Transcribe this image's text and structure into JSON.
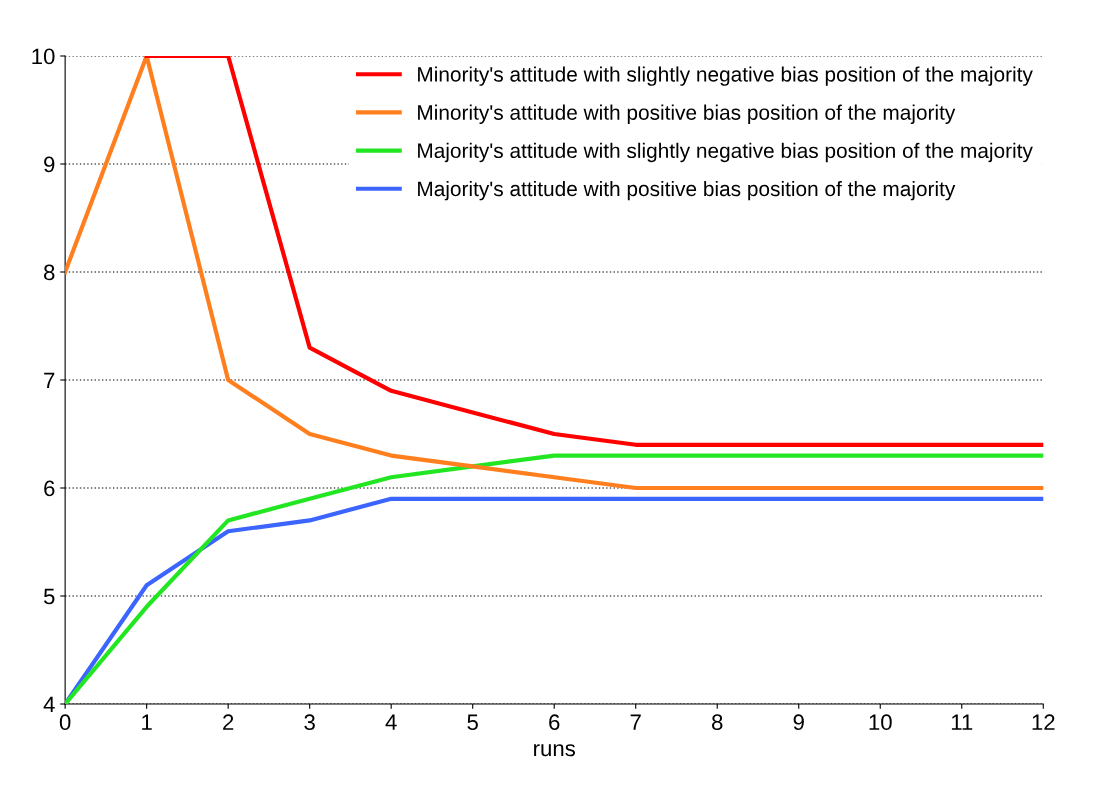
{
  "chart_data": {
    "type": "line",
    "xlabel": "runs",
    "categories": [
      "0",
      "1",
      "2",
      "3",
      "4",
      "5",
      "6",
      "7",
      "8",
      "9",
      "10",
      "11",
      "12"
    ],
    "ylim": [
      4,
      10
    ],
    "yticks": [
      4,
      5,
      6,
      7,
      8,
      9,
      10
    ],
    "grid": "y",
    "legend": "top right",
    "marker": "none",
    "line_style": "solid",
    "series": [
      {
        "name": "Minority's attitude with slightly negative bias position of the majority",
        "color": "#ff0000",
        "values": [
          null,
          10,
          10,
          7.3,
          6.9,
          6.7,
          6.5,
          6.4,
          6.4,
          6.4,
          6.4,
          6.4,
          6.4
        ]
      },
      {
        "name": "Minority's attitude with positive bias position of the majority",
        "color": "#ff7f1e",
        "values": [
          8,
          10,
          7,
          6.5,
          6.3,
          6.2,
          6.1,
          6.0,
          6.0,
          6.0,
          6.0,
          6.0,
          6.0
        ]
      },
      {
        "name": "Majority's attitude with slightly negative bias position of the majority",
        "color": "#22e622",
        "values": [
          4,
          4.9,
          5.7,
          5.9,
          6.1,
          6.2,
          6.3,
          6.3,
          6.3,
          6.3,
          6.3,
          6.3,
          6.3
        ]
      },
      {
        "name": "Majority's attitude with positive bias position of the majority",
        "color": "#3c64ff",
        "values": [
          4,
          5.1,
          5.6,
          5.7,
          5.9,
          5.9,
          5.9,
          5.9,
          5.9,
          5.9,
          5.9,
          5.9,
          5.9
        ]
      }
    ]
  }
}
